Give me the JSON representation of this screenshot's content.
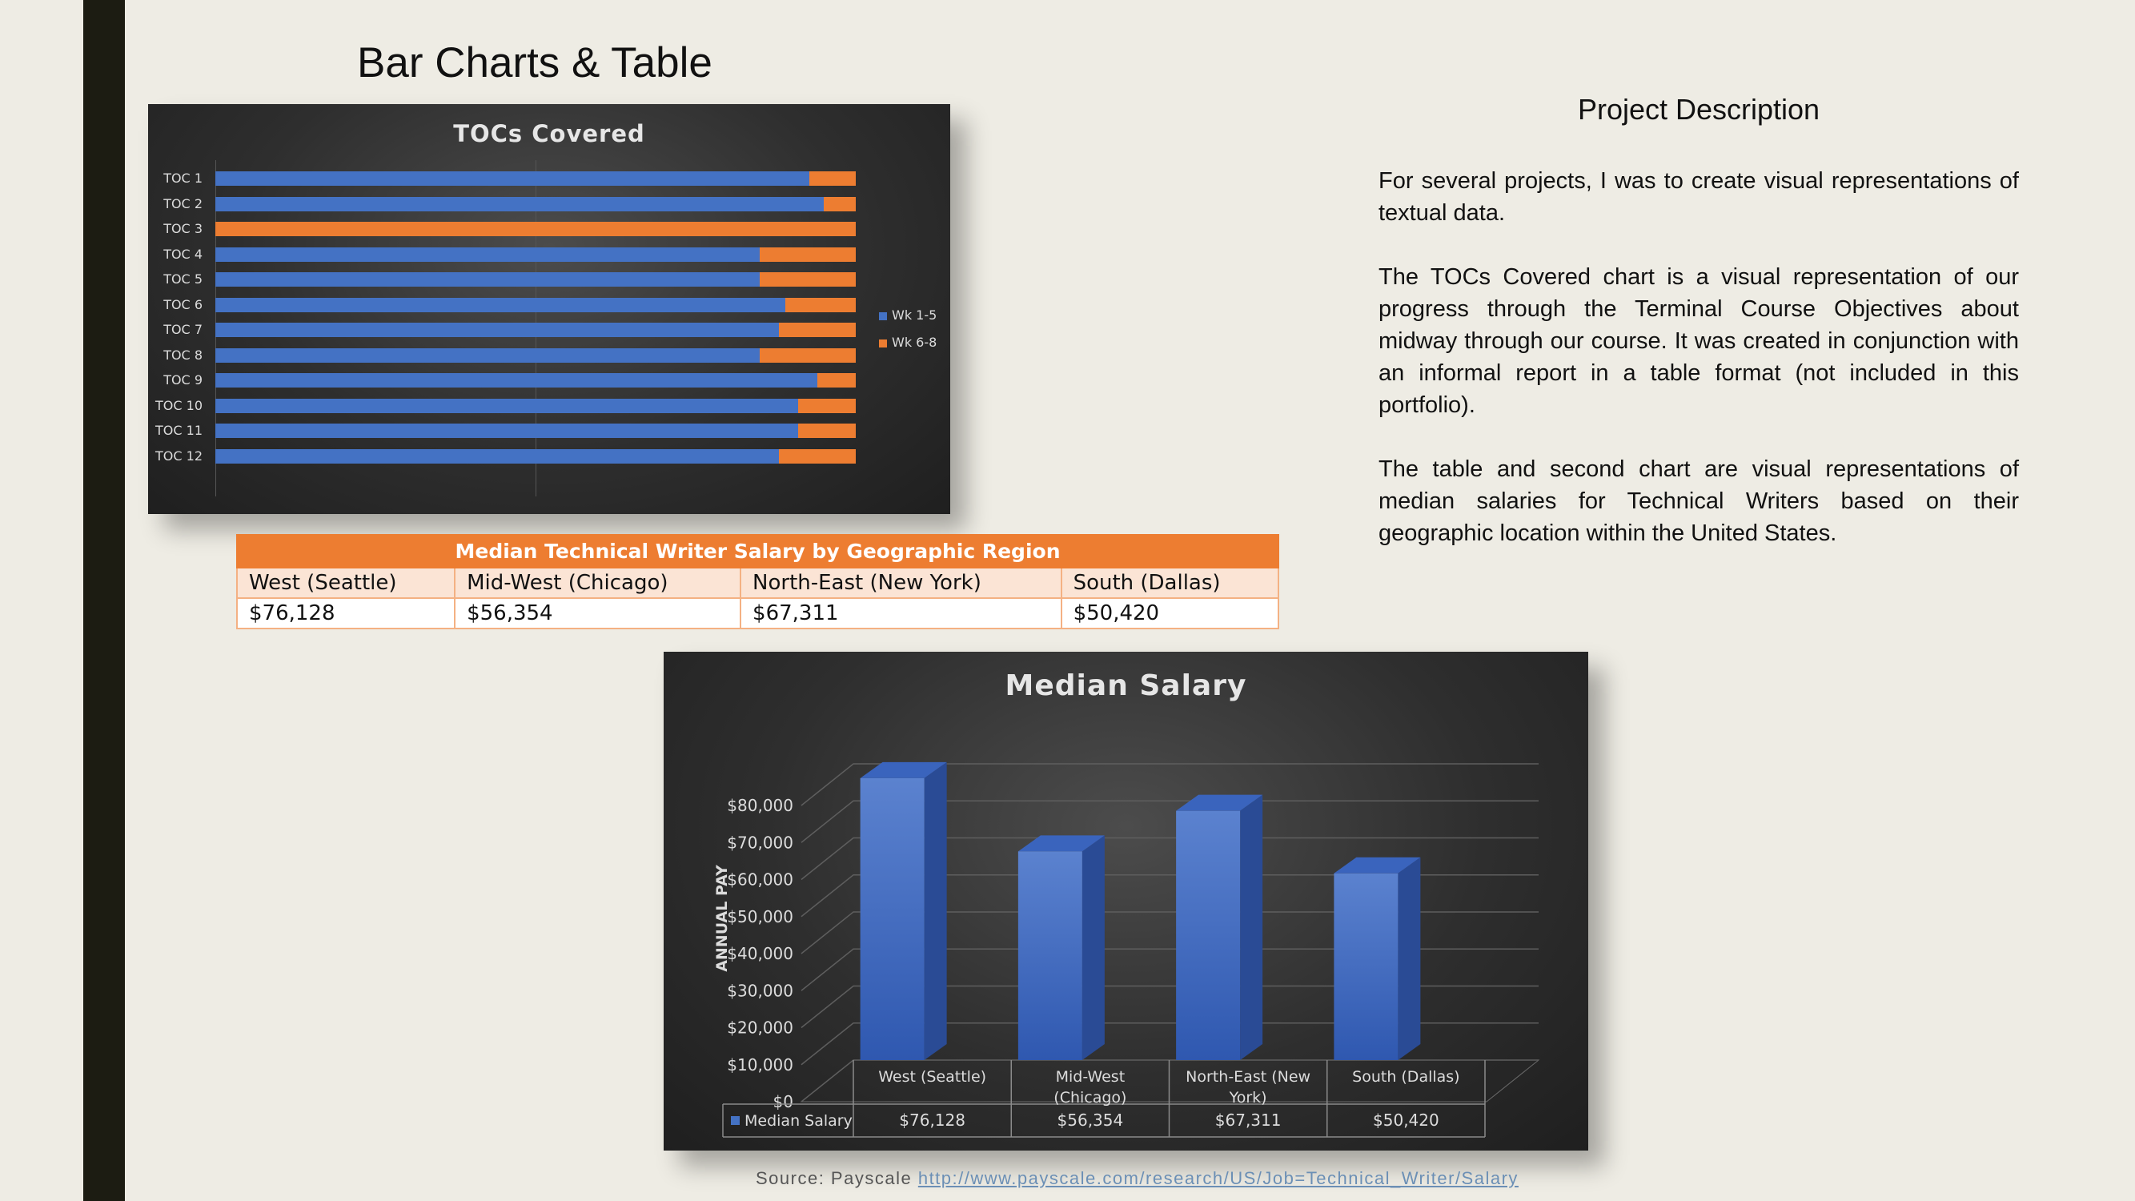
{
  "slide": {
    "title": "Bar Charts & Table"
  },
  "description": {
    "title": "Project Description",
    "paragraphs": [
      "For several projects, I was to create visual representations of textual data.",
      "The TOCs Covered chart is a visual representation of our progress through the Terminal Course Objectives about midway through our course. It was created in conjunction with an informal report in a table format (not included in this portfolio).",
      "The table and second chart are visual representations of median salaries for Technical Writers based on their geographic location within the United States."
    ]
  },
  "salary_table": {
    "title": "Median Technical Writer Salary by Geographic Region",
    "headers": [
      "West (Seattle)",
      "Mid-West (Chicago)",
      "North-East (New York)",
      "South (Dallas)"
    ],
    "values": [
      "$76,128",
      "$56,354",
      "$67,311",
      "$50,420"
    ]
  },
  "source": {
    "label": "Source: Payscale",
    "link": "http://www.payscale.com/research/US/Job=Technical_Writer/Salary"
  },
  "colors": {
    "blue": "#4472c4",
    "orange": "#ed7d31",
    "background": "#eeece4"
  },
  "chart_data": [
    {
      "type": "bar",
      "orientation": "horizontal",
      "stacked": true,
      "title": "TOCs Covered",
      "categories": [
        "TOC 1",
        "TOC 2",
        "TOC 3",
        "TOC 4",
        "TOC 5",
        "TOC 6",
        "TOC 7",
        "TOC 8",
        "TOC 9",
        "TOC 10",
        "TOC 11",
        "TOC 12"
      ],
      "series": [
        {
          "name": "Wk 1-5",
          "values": [
            0.927,
            0.95,
            0.0,
            0.85,
            0.85,
            0.89,
            0.88,
            0.85,
            0.94,
            0.91,
            0.91,
            0.88
          ]
        },
        {
          "name": "Wk 6-8",
          "values": [
            0.073,
            0.05,
            1.0,
            0.15,
            0.15,
            0.11,
            0.12,
            0.15,
            0.06,
            0.09,
            0.09,
            0.12
          ]
        }
      ],
      "xlim": [
        0,
        1
      ],
      "legend": "right"
    },
    {
      "type": "bar",
      "title": "Median Salary",
      "categories": [
        "West (Seattle)",
        "Mid-West (Chicago)",
        "North-East (New York)",
        "South (Dallas)"
      ],
      "series": [
        {
          "name": "Median Salary",
          "values": [
            76128,
            56354,
            67311,
            50420
          ]
        }
      ],
      "value_labels": [
        "$76,128",
        "$56,354",
        "$67,311",
        "$50,420"
      ],
      "ylabel": "ANNUAL PAY",
      "ylim": [
        0,
        80000
      ],
      "yticks": [
        "$0",
        "$10,000",
        "$20,000",
        "$30,000",
        "$40,000",
        "$50,000",
        "$60,000",
        "$70,000",
        "$80,000"
      ],
      "legend": "data-table"
    }
  ]
}
